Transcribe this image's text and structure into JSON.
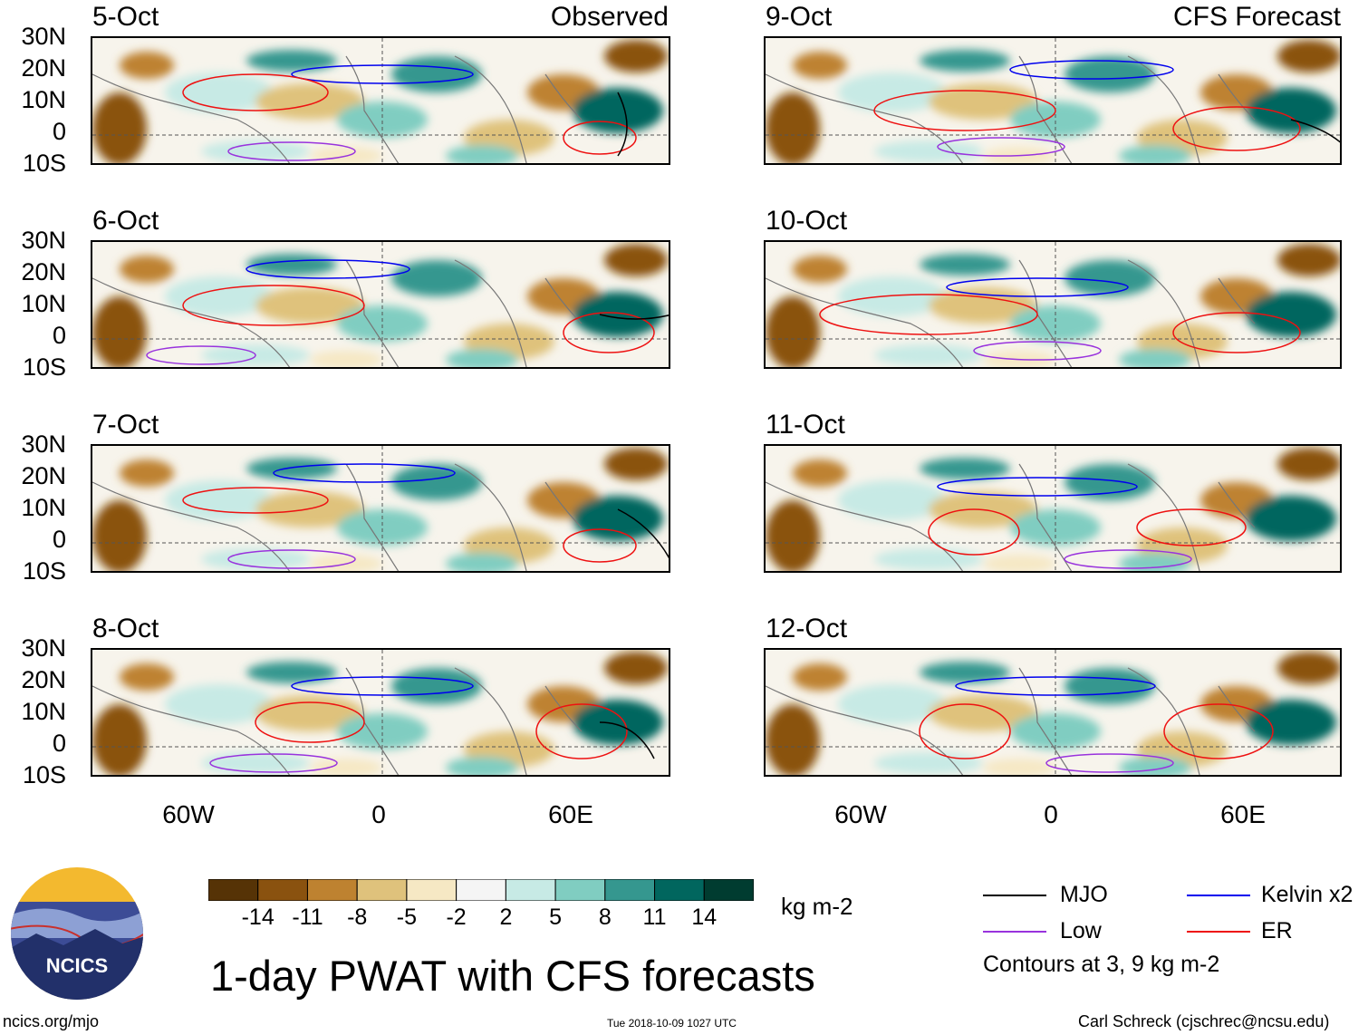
{
  "map": {
    "dates_left": [
      "5-Oct",
      "6-Oct",
      "7-Oct",
      "8-Oct"
    ],
    "dates_right": [
      "9-Oct",
      "10-Oct",
      "11-Oct",
      "12-Oct"
    ],
    "observed_label": "Observed",
    "forecast_label": "CFS Forecast",
    "lat_labels": [
      "30N",
      "20N",
      "10N",
      "0",
      "10S"
    ],
    "lon_labels": [
      "60W",
      "0",
      "60E"
    ]
  },
  "colorbar": {
    "ticks": [
      "-14",
      "-11",
      "-8",
      "-5",
      "-2",
      "2",
      "5",
      "8",
      "11",
      "14"
    ],
    "colors": [
      "#563306",
      "#8a520f",
      "#be8230",
      "#dfc27c",
      "#f6e8c4",
      "#f5f5f5",
      "#c7eae5",
      "#80cdc1",
      "#35978f",
      "#01665e",
      "#003c30"
    ],
    "units": "kg m-2"
  },
  "legend": {
    "items": [
      {
        "label": "MJO",
        "color": "#000000"
      },
      {
        "label": "Kelvin x2",
        "color": "#0000ee"
      },
      {
        "label": "Low",
        "color": "#9933dd"
      },
      {
        "label": "ER",
        "color": "#ee1111"
      }
    ],
    "note": "Contours at 3, 9 kg m-2"
  },
  "title": "1-day PWAT with CFS forecasts",
  "logo": {
    "text": "NCICS"
  },
  "footer": {
    "left": "ncics.org/mjo",
    "center": "Tue 2018-10-09 1027 UTC",
    "right": "Carl Schreck (cjschrec@ncsu.edu)"
  }
}
